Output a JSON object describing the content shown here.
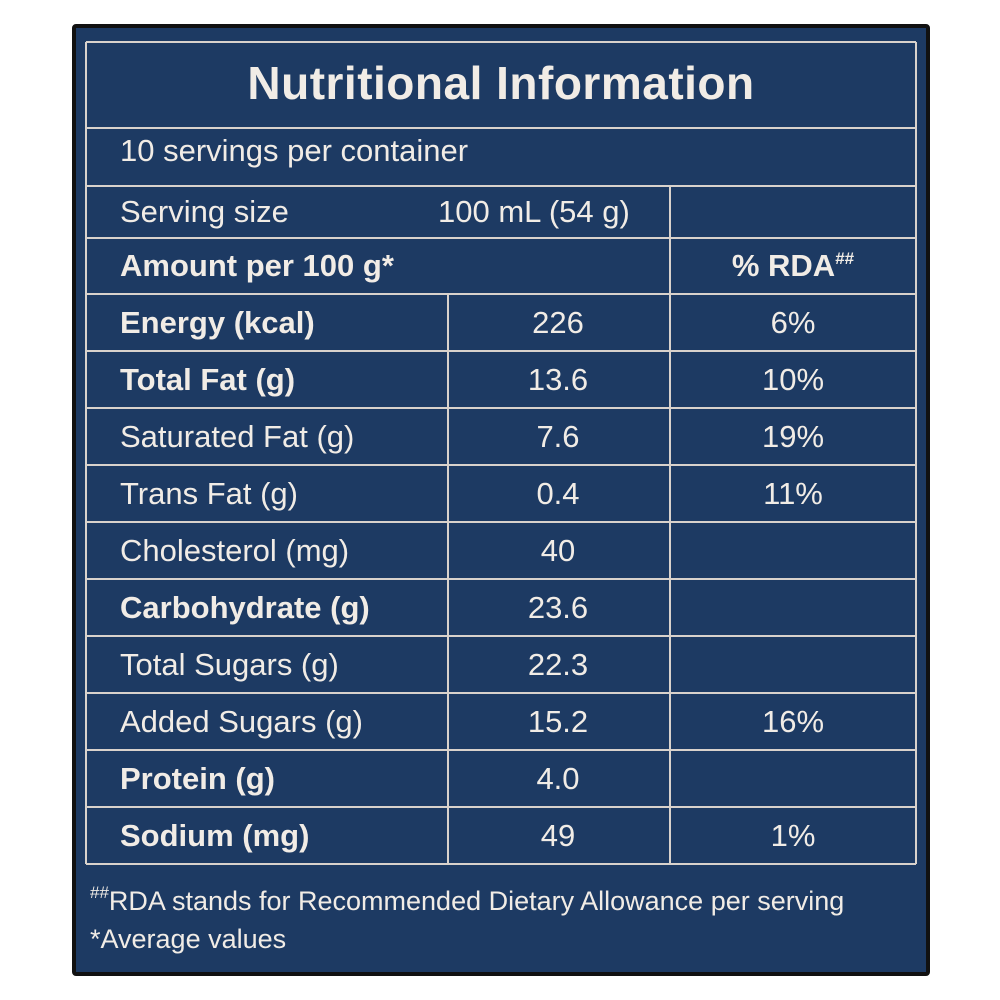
{
  "panel": {
    "title": "Nutritional Information",
    "servings_per_container": "10 servings per container",
    "serving_size_label": "Serving size",
    "serving_size_value": "100 mL (54 g)",
    "amount_header": "Amount per 100 g*",
    "rda_header": "% RDA",
    "rda_header_marker": "##"
  },
  "rows": [
    {
      "name": "Energy (kcal)",
      "value": "226",
      "rda": "6%",
      "bold": true
    },
    {
      "name": "Total Fat (g)",
      "value": "13.6",
      "rda": "10%",
      "bold": true
    },
    {
      "name": "Saturated Fat (g)",
      "value": "7.6",
      "rda": "19%",
      "bold": false
    },
    {
      "name": "Trans Fat (g)",
      "value": "0.4",
      "rda": "11%",
      "bold": false
    },
    {
      "name": "Cholesterol (mg)",
      "value": "40",
      "rda": "",
      "bold": false
    },
    {
      "name": "Carbohydrate (g)",
      "value": "23.6",
      "rda": "",
      "bold": true
    },
    {
      "name": "Total Sugars (g)",
      "value": "22.3",
      "rda": "",
      "bold": false
    },
    {
      "name": "Added Sugars (g)",
      "value": "15.2",
      "rda": "16%",
      "bold": false
    },
    {
      "name": "Protein (g)",
      "value": "4.0",
      "rda": "",
      "bold": true
    },
    {
      "name": "Sodium (mg)",
      "value": "49",
      "rda": "1%",
      "bold": true
    }
  ],
  "footnotes": {
    "rda_marker": "##",
    "rda_text": "RDA stands for Recommended Dietary Allowance per serving",
    "average_text": "*Average values"
  },
  "colors": {
    "panel_background": "#1d3a63",
    "text": "#f1ece6",
    "rule_lines": "#d9d2cc",
    "outer_border": "#111111"
  }
}
